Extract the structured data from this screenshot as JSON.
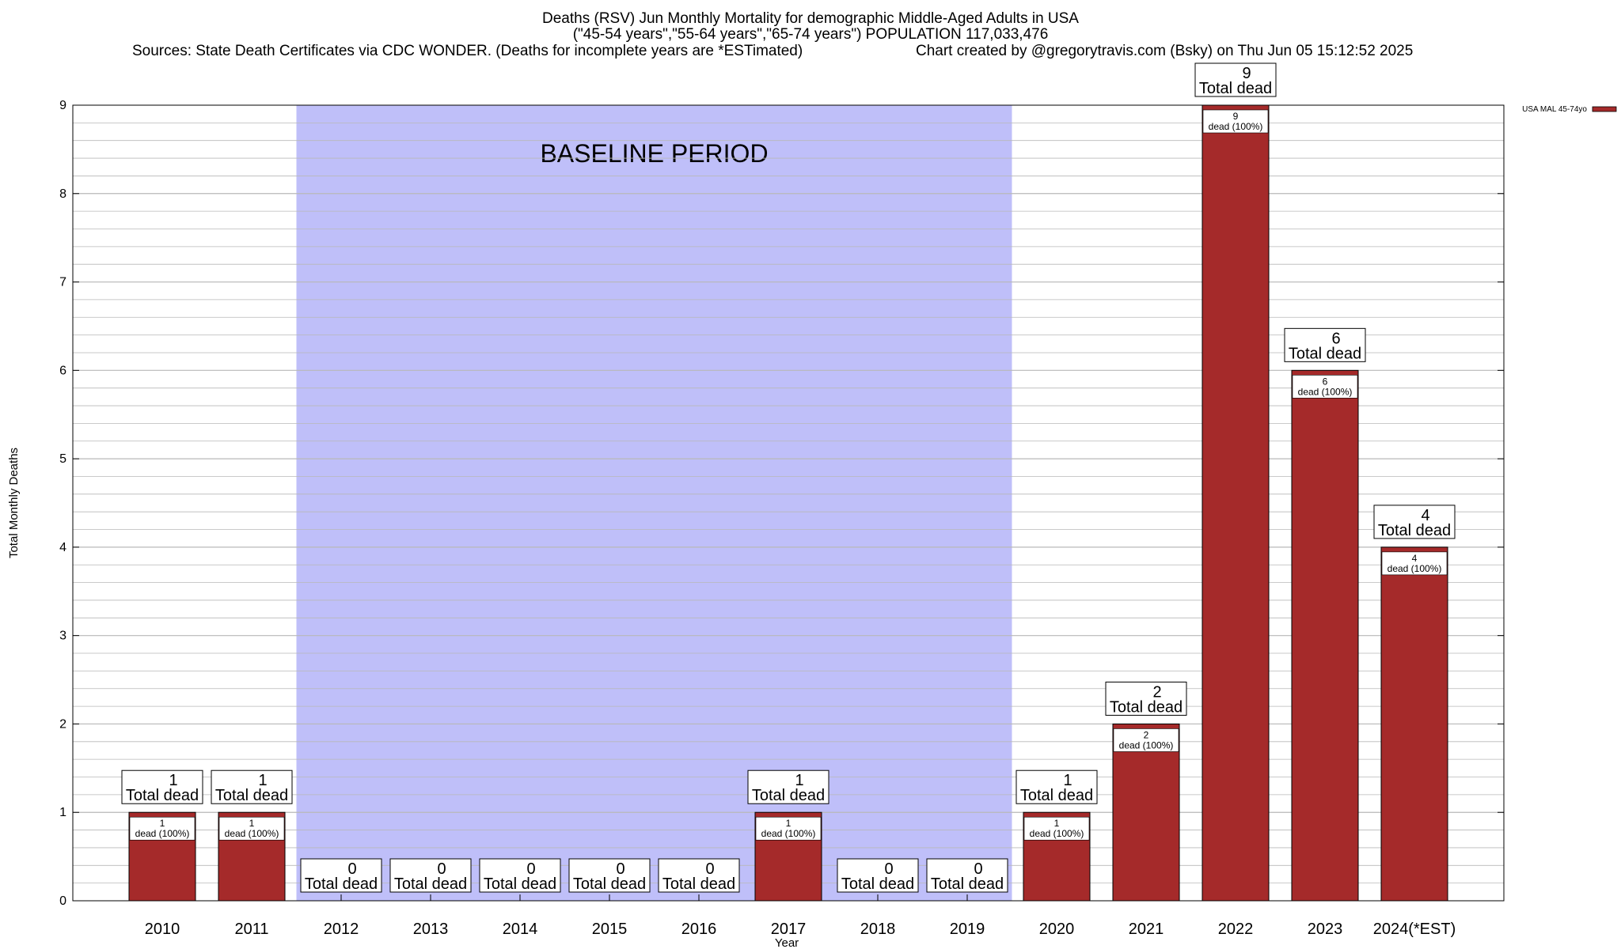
{
  "titles": {
    "line1": "Deaths (RSV) Jun Monthly Mortality for demographic Middle-Aged Adults in USA",
    "line2": "(\"45-54 years\",\"55-64 years\",\"65-74 years\") POPULATION 117,033,476",
    "sources": "Sources: State Death Certificates via CDC WONDER. (Deaths for incomplete years are *ESTimated)",
    "credit": "Chart created by @gregorytravis.com (Bsky) on Thu Jun 05 15:12:52 2025"
  },
  "colors": {
    "bar": "#a52a2a",
    "baseline_band": "#bfbff9",
    "grid": "#b8b8b8"
  },
  "chart_data": {
    "type": "bar",
    "categories": [
      "2010",
      "2011",
      "2012",
      "2013",
      "2014",
      "2015",
      "2016",
      "2017",
      "2018",
      "2019",
      "2020",
      "2021",
      "2022",
      "2023",
      "2024(*EST)"
    ],
    "series": [
      {
        "name": "USA MAL 45-74yo",
        "values": [
          1,
          1,
          0,
          0,
          0,
          0,
          0,
          1,
          0,
          0,
          1,
          2,
          9,
          6,
          4
        ]
      }
    ],
    "total_label_suffix": "Total dead",
    "inner_label_suffix": "dead (100%)",
    "xlabel": "Year",
    "ylabel": "Total Monthly Deaths",
    "ylim": [
      0,
      9
    ],
    "yticks": [
      0,
      1,
      2,
      3,
      4,
      5,
      6,
      7,
      8,
      9
    ],
    "minor_grid_step": 0.2,
    "grid": true,
    "baseline_period": {
      "label": "BASELINE PERIOD",
      "from": "2012",
      "to": "2019"
    },
    "legend_position": "top-right"
  }
}
